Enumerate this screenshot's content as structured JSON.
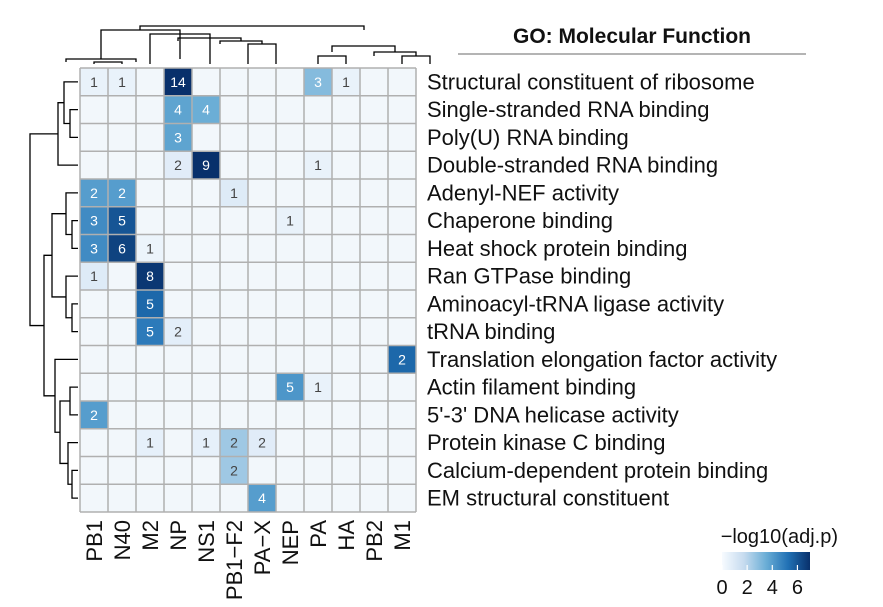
{
  "chart_data": {
    "type": "heatmap",
    "title": "GO: Molecular Function",
    "rows": [
      "Structural constituent of ribosome",
      "Single-stranded RNA binding",
      "Poly(U) RNA binding",
      "Double-stranded RNA binding",
      "Adenyl-NEF activity",
      "Chaperone binding",
      "Heat shock protein binding",
      "Ran GTPase binding",
      "Aminoacyl-tRNA ligase activity",
      "tRNA binding",
      "Translation elongation factor activity",
      "Actin filament binding",
      "5'-3' DNA helicase activity",
      "Protein kinase C binding",
      "Calcium-dependent protein binding",
      "EM structural constituent"
    ],
    "columns": [
      "PB1",
      "N40",
      "M2",
      "NP",
      "NS1",
      "PB1−F2",
      "PA−X",
      "NEP",
      "PA",
      "HA",
      "PB2",
      "M1"
    ],
    "cells": [
      {
        "row": 0,
        "col": 0,
        "count": 1,
        "value": 0.5
      },
      {
        "row": 0,
        "col": 1,
        "count": 1,
        "value": 0.5
      },
      {
        "row": 0,
        "col": 3,
        "count": 14,
        "value": 7.0
      },
      {
        "row": 0,
        "col": 8,
        "count": 3,
        "value": 3.0
      },
      {
        "row": 0,
        "col": 9,
        "count": 1,
        "value": 0.5
      },
      {
        "row": 1,
        "col": 3,
        "count": 4,
        "value": 3.8
      },
      {
        "row": 1,
        "col": 4,
        "count": 4,
        "value": 3.5
      },
      {
        "row": 2,
        "col": 3,
        "count": 3,
        "value": 3.8
      },
      {
        "row": 3,
        "col": 3,
        "count": 2,
        "value": 0.8
      },
      {
        "row": 3,
        "col": 4,
        "count": 9,
        "value": 7.0
      },
      {
        "row": 3,
        "col": 8,
        "count": 1,
        "value": 0.5
      },
      {
        "row": 4,
        "col": 0,
        "count": 2,
        "value": 4.0
      },
      {
        "row": 4,
        "col": 1,
        "count": 2,
        "value": 4.0
      },
      {
        "row": 4,
        "col": 5,
        "count": 1,
        "value": 0.9
      },
      {
        "row": 5,
        "col": 0,
        "count": 3,
        "value": 4.5
      },
      {
        "row": 5,
        "col": 1,
        "count": 5,
        "value": 6.0
      },
      {
        "row": 5,
        "col": 7,
        "count": 1,
        "value": 0.5
      },
      {
        "row": 6,
        "col": 0,
        "count": 3,
        "value": 4.5
      },
      {
        "row": 6,
        "col": 1,
        "count": 6,
        "value": 6.5
      },
      {
        "row": 6,
        "col": 2,
        "count": 1,
        "value": 0.4
      },
      {
        "row": 7,
        "col": 0,
        "count": 1,
        "value": 0.9
      },
      {
        "row": 7,
        "col": 2,
        "count": 8,
        "value": 6.8
      },
      {
        "row": 8,
        "col": 2,
        "count": 5,
        "value": 5.5
      },
      {
        "row": 9,
        "col": 2,
        "count": 5,
        "value": 5.0
      },
      {
        "row": 9,
        "col": 3,
        "count": 2,
        "value": 0.7
      },
      {
        "row": 10,
        "col": 11,
        "count": 2,
        "value": 5.5
      },
      {
        "row": 11,
        "col": 7,
        "count": 5,
        "value": 4.2
      },
      {
        "row": 11,
        "col": 8,
        "count": 1,
        "value": 0.5
      },
      {
        "row": 12,
        "col": 0,
        "count": 2,
        "value": 4.0
      },
      {
        "row": 13,
        "col": 2,
        "count": 1,
        "value": 0.6
      },
      {
        "row": 13,
        "col": 4,
        "count": 1,
        "value": 0.6
      },
      {
        "row": 13,
        "col": 5,
        "count": 2,
        "value": 2.5
      },
      {
        "row": 13,
        "col": 6,
        "count": 2,
        "value": 0.8
      },
      {
        "row": 14,
        "col": 5,
        "count": 2,
        "value": 2.5
      },
      {
        "row": 15,
        "col": 6,
        "count": 4,
        "value": 4.0
      }
    ],
    "legend": {
      "title": "−log10(adj.p)",
      "ticks": [
        0,
        2,
        4,
        6
      ],
      "range": [
        0,
        7
      ],
      "colors": [
        "#f7fbff",
        "#c6dbef",
        "#6baed6",
        "#2171b5",
        "#08306b"
      ]
    },
    "colors": {
      "background": "#f2f7fb",
      "grid": "#b0b0b0",
      "dendrogram": "#000000"
    }
  }
}
